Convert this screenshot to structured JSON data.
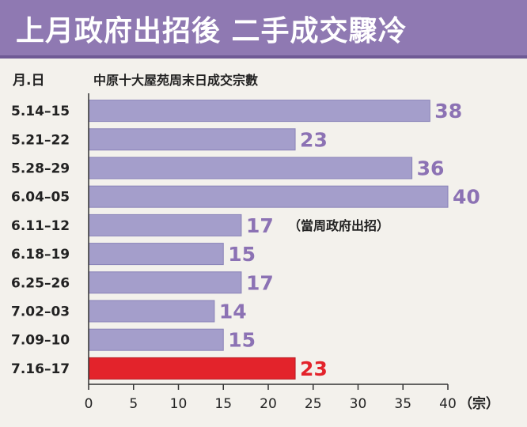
{
  "chart_data": {
    "type": "bar",
    "orientation": "horizontal",
    "title": "上月政府出招後 二手成交驟冷",
    "xlabel": "（宗）",
    "ylabel": "月.日",
    "series_label": "中原十大屋苑周末日成交宗數",
    "categories": [
      "5.14–15",
      "5.21–22",
      "5.28–29",
      "6.04–05",
      "6.11–12",
      "6.18–19",
      "6.25–26",
      "7.02–03",
      "7.09–10",
      "7.16–17"
    ],
    "values": [
      38,
      23,
      36,
      40,
      17,
      15,
      17,
      14,
      15,
      23
    ],
    "value_labels": [
      "38",
      "23",
      "36",
      "40",
      "17",
      "15",
      "17",
      "14",
      "15",
      "23"
    ],
    "highlight_index": 9,
    "annotation": {
      "text": "（當周政府出招）",
      "category_index": 4
    },
    "xlim": [
      0,
      40
    ],
    "xticks": [
      "0",
      "5",
      "10",
      "15",
      "20",
      "25",
      "30",
      "35",
      "40"
    ],
    "colors": {
      "bar": "#a49ecb",
      "bar_stroke": "#8a83b8",
      "highlight": "#e3232b",
      "highlight_stroke": "#b81a20",
      "value_text": "#8c72b4",
      "highlight_text": "#e3232b",
      "title_bg": "#8f79b2"
    }
  }
}
